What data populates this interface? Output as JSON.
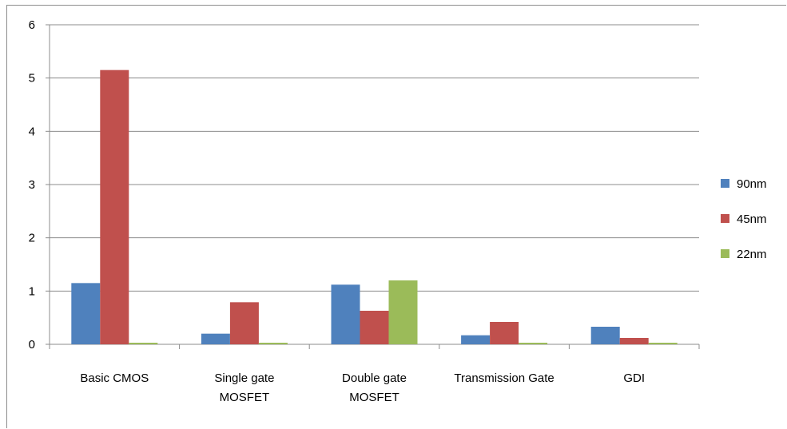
{
  "chart_data": {
    "type": "bar",
    "categories": [
      [
        "Basic CMOS"
      ],
      [
        "Single gate",
        "MOSFET"
      ],
      [
        "Double gate",
        "MOSFET"
      ],
      [
        "Transmission Gate"
      ],
      [
        "GDI"
      ]
    ],
    "series": [
      {
        "name": "90nm",
        "color": "#4f81bd",
        "values": [
          1.15,
          0.2,
          1.12,
          0.17,
          0.33
        ]
      },
      {
        "name": "45nm",
        "color": "#c0504d",
        "values": [
          5.15,
          0.79,
          0.63,
          0.42,
          0.12
        ]
      },
      {
        "name": "22nm",
        "color": "#9bbb59",
        "values": [
          0.03,
          0.03,
          1.2,
          0.03,
          0.03
        ]
      }
    ],
    "ylim": [
      0,
      6
    ],
    "yticks": [
      0,
      1,
      2,
      3,
      4,
      5,
      6
    ],
    "grid": true,
    "legend_position": "right"
  }
}
